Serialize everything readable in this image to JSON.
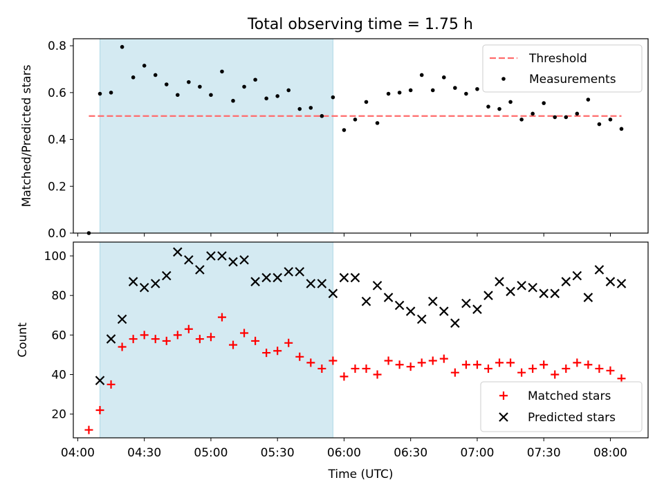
{
  "figure": {
    "title": "Total observing time = 1.75 h"
  },
  "colors": {
    "shade": "#add8e6",
    "threshold": "#ff6b6b",
    "matched": "#ff0000",
    "predicted": "#000000",
    "measurement": "#000000"
  },
  "chart_data": [
    {
      "type": "scatter",
      "ylabel": "Matched/Predicted stars",
      "ylim": [
        0,
        0.83
      ],
      "yticks": [
        "0.0",
        "0.2",
        "0.4",
        "0.6",
        "0.8"
      ],
      "ytick_values": [
        0,
        0.2,
        0.4,
        0.6,
        0.8
      ],
      "shaded_span": [
        "04:10",
        "05:55"
      ],
      "threshold": {
        "name": "Threshold",
        "value": 0.5,
        "x_range": [
          "04:05",
          "08:05"
        ]
      },
      "legend": {
        "position": "upper right",
        "entries": [
          "Threshold",
          "Measurements"
        ]
      },
      "series": [
        {
          "name": "Measurements",
          "marker": "dot",
          "x": [
            "04:05",
            "04:10",
            "04:15",
            "04:20",
            "04:25",
            "04:30",
            "04:35",
            "04:40",
            "04:45",
            "04:50",
            "04:55",
            "05:00",
            "05:05",
            "05:10",
            "05:15",
            "05:20",
            "05:25",
            "05:30",
            "05:35",
            "05:40",
            "05:45",
            "05:50",
            "05:55",
            "06:00",
            "06:05",
            "06:10",
            "06:15",
            "06:20",
            "06:25",
            "06:30",
            "06:35",
            "06:40",
            "06:45",
            "06:50",
            "06:55",
            "07:00",
            "07:05",
            "07:10",
            "07:15",
            "07:20",
            "07:25",
            "07:30",
            "07:35",
            "07:40",
            "07:45",
            "07:50",
            "07:55",
            "08:00",
            "08:05"
          ],
          "y": [
            0.0,
            0.595,
            0.6,
            0.795,
            0.665,
            0.715,
            0.675,
            0.635,
            0.59,
            0.645,
            0.625,
            0.59,
            0.69,
            0.565,
            0.625,
            0.655,
            0.575,
            0.585,
            0.61,
            0.53,
            0.535,
            0.5,
            0.58,
            0.44,
            0.485,
            0.56,
            0.47,
            0.595,
            0.6,
            0.61,
            0.675,
            0.61,
            0.665,
            0.62,
            0.595,
            0.615,
            0.54,
            0.53,
            0.56,
            0.485,
            0.51,
            0.555,
            0.495,
            0.495,
            0.51,
            0.57,
            0.465,
            0.485,
            0.445
          ]
        }
      ]
    },
    {
      "type": "scatter",
      "ylabel": "Count",
      "xlabel": "Time (UTC)",
      "ylim": [
        8,
        107
      ],
      "yticks": [
        "20",
        "40",
        "60",
        "80",
        "100"
      ],
      "ytick_values": [
        20,
        40,
        60,
        80,
        100
      ],
      "xticks": [
        "04:00",
        "04:30",
        "05:00",
        "05:30",
        "06:00",
        "06:30",
        "07:00",
        "07:30",
        "08:00"
      ],
      "xlim": [
        "03:58",
        "08:17"
      ],
      "shaded_span": [
        "04:10",
        "05:55"
      ],
      "legend": {
        "position": "lower right",
        "entries": [
          "Matched stars",
          "Predicted stars"
        ]
      },
      "series": [
        {
          "name": "Matched stars",
          "marker": "plus",
          "x": [
            "04:05",
            "04:10",
            "04:15",
            "04:20",
            "04:25",
            "04:30",
            "04:35",
            "04:40",
            "04:45",
            "04:50",
            "04:55",
            "05:00",
            "05:05",
            "05:10",
            "05:15",
            "05:20",
            "05:25",
            "05:30",
            "05:35",
            "05:40",
            "05:45",
            "05:50",
            "05:55",
            "06:00",
            "06:05",
            "06:10",
            "06:15",
            "06:20",
            "06:25",
            "06:30",
            "06:35",
            "06:40",
            "06:45",
            "06:50",
            "06:55",
            "07:00",
            "07:05",
            "07:10",
            "07:15",
            "07:20",
            "07:25",
            "07:30",
            "07:35",
            "07:40",
            "07:45",
            "07:50",
            "07:55",
            "08:00",
            "08:05"
          ],
          "y": [
            12,
            22,
            35,
            54,
            58,
            60,
            58,
            57,
            60,
            63,
            58,
            59,
            69,
            55,
            61,
            57,
            51,
            52,
            56,
            49,
            46,
            43,
            47,
            39,
            43,
            43,
            40,
            47,
            45,
            44,
            46,
            47,
            48,
            41,
            45,
            45,
            43,
            46,
            46,
            41,
            43,
            45,
            40,
            43,
            46,
            45,
            43,
            42,
            38
          ]
        },
        {
          "name": "Predicted stars",
          "marker": "x",
          "x": [
            "04:10",
            "04:15",
            "04:20",
            "04:25",
            "04:30",
            "04:35",
            "04:40",
            "04:45",
            "04:50",
            "04:55",
            "05:00",
            "05:05",
            "05:10",
            "05:15",
            "05:20",
            "05:25",
            "05:30",
            "05:35",
            "05:40",
            "05:45",
            "05:50",
            "05:55",
            "06:00",
            "06:05",
            "06:10",
            "06:15",
            "06:20",
            "06:25",
            "06:30",
            "06:35",
            "06:40",
            "06:45",
            "06:50",
            "06:55",
            "07:00",
            "07:05",
            "07:10",
            "07:15",
            "07:20",
            "07:25",
            "07:30",
            "07:35",
            "07:40",
            "07:45",
            "07:50",
            "07:55",
            "08:00",
            "08:05"
          ],
          "y": [
            37,
            58,
            68,
            87,
            84,
            86,
            90,
            102,
            98,
            93,
            100,
            100,
            97,
            98,
            87,
            89,
            89,
            92,
            92,
            86,
            86,
            81,
            89,
            89,
            77,
            85,
            79,
            75,
            72,
            68,
            77,
            72,
            66,
            76,
            73,
            80,
            87,
            82,
            85,
            84,
            81,
            81,
            87,
            90,
            79,
            93,
            87,
            86
          ]
        }
      ]
    }
  ]
}
